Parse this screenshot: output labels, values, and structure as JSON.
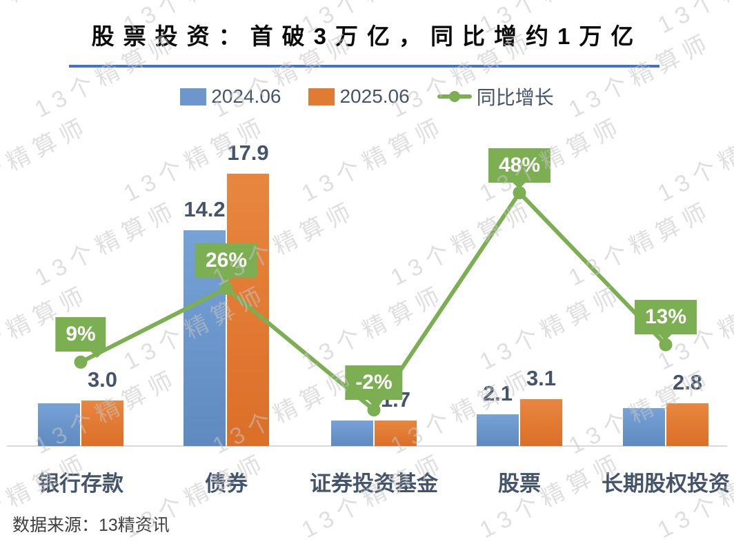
{
  "title": {
    "text": "股票投资：首破3万亿，同比增约1万亿"
  },
  "legend": {
    "items": [
      {
        "label": "2024.06",
        "swatch": "blue-square",
        "color": "#6C96CC"
      },
      {
        "label": "2025.06",
        "swatch": "orange-square",
        "color": "#E07B34"
      },
      {
        "label": "同比增长",
        "swatch": "green-line-marker",
        "color": "#7CAE52"
      }
    ]
  },
  "watermark": {
    "text": "13个精算师"
  },
  "footer": {
    "source_text": "数据来源：13精资讯"
  },
  "chart_data": {
    "type": "bar",
    "subtype": "grouped bars with overlaid growth line (combo chart)",
    "title": "股票投资：首破3万亿，同比增约1万亿",
    "categories": [
      "银行存款",
      "债券",
      "证券投资基金",
      "股票",
      "长期股权投资"
    ],
    "series": [
      {
        "name": "2024.06",
        "type": "bar",
        "color": "#6C96CC",
        "values": [
          2.8,
          14.2,
          1.7,
          2.1,
          2.5
        ],
        "visible_labels": [
          null,
          "14.2",
          null,
          "2.1",
          null
        ]
      },
      {
        "name": "2025.06",
        "type": "bar",
        "color": "#E07B34",
        "values": [
          3.0,
          17.9,
          1.7,
          3.1,
          2.8
        ],
        "visible_labels": [
          "3.0",
          "17.9",
          "1.7",
          "3.1",
          "2.8"
        ]
      },
      {
        "name": "同比增长",
        "type": "line",
        "color": "#7CAE52",
        "values_pct": [
          9,
          26,
          -2,
          48,
          13
        ],
        "labels": [
          "9%",
          "26%",
          "-2%",
          "48%",
          "13%"
        ]
      }
    ],
    "xlabel": "",
    "ylabel": "",
    "unit_hint": "万亿",
    "value_axis_visible": false,
    "gridlines": false,
    "legend_position": "top",
    "bar_axis_range": [
      0,
      18
    ],
    "pct_axis_range": [
      -10,
      55
    ]
  }
}
